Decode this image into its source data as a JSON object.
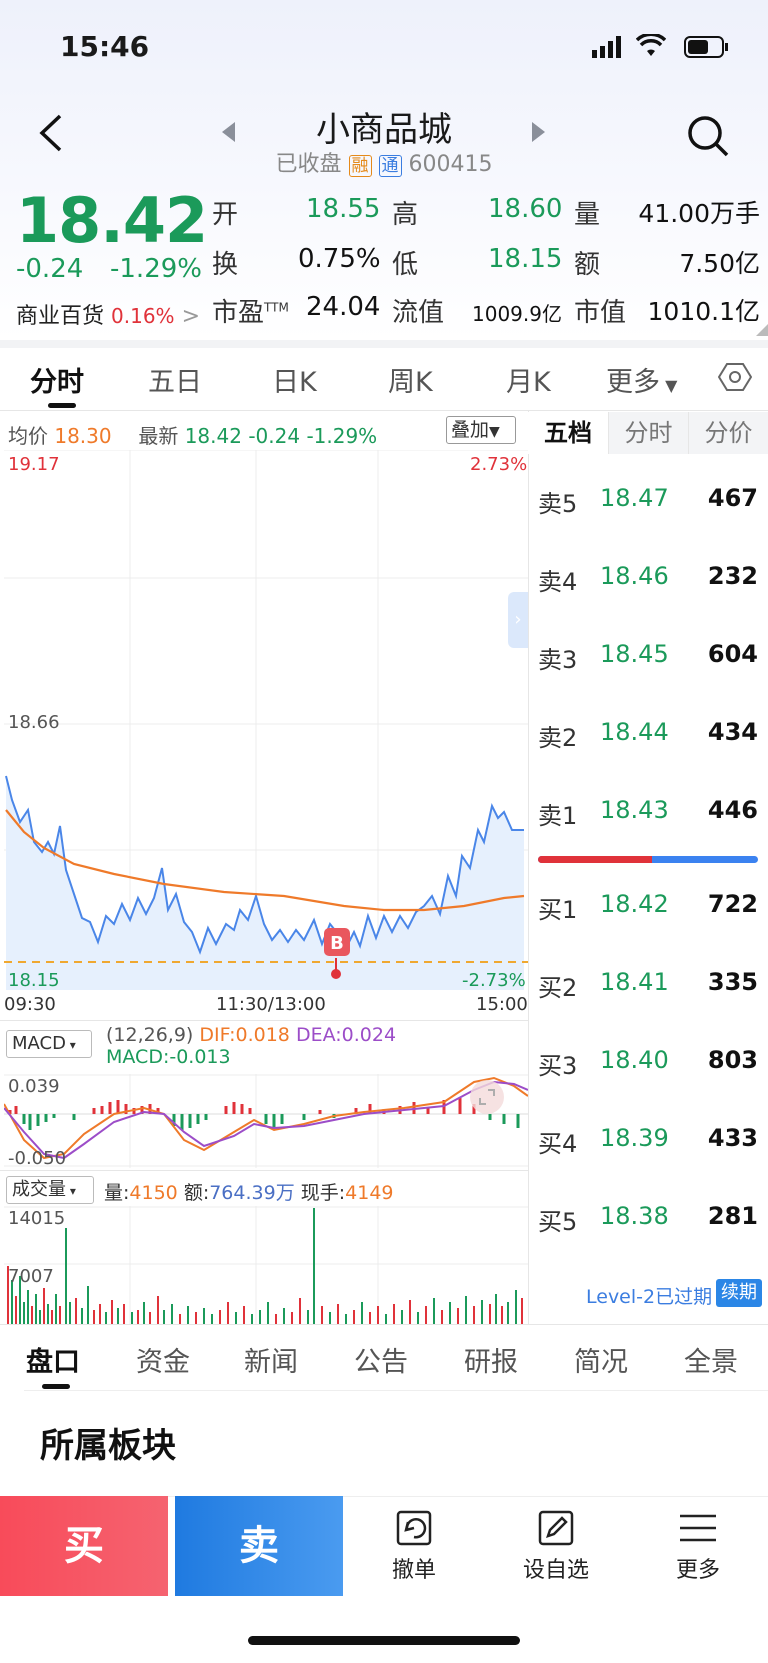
{
  "status_bar": {
    "time": "15:46"
  },
  "header": {
    "title": "小商品城",
    "status": "已收盘",
    "badge_rong": "融",
    "badge_tong": "通",
    "code": "600415"
  },
  "quote": {
    "price": "18.42",
    "change": "-0.24",
    "change_pct": "-1.29%",
    "sector_name": "商业百货",
    "sector_pct": "0.16%",
    "fields": [
      {
        "label": "开",
        "value": "18.55"
      },
      {
        "label": "高",
        "value": "18.60"
      },
      {
        "label": "量",
        "value": "41.00万手"
      },
      {
        "label": "换",
        "value": "0.75%"
      },
      {
        "label": "低",
        "value": "18.15"
      },
      {
        "label": "额",
        "value": "7.50亿"
      },
      {
        "label": "市盈",
        "sup": "TTM",
        "value": "24.04"
      },
      {
        "label": "流值",
        "value": "1009.9亿"
      },
      {
        "label": "市值",
        "value": "1010.1亿"
      }
    ]
  },
  "chart_tabs": [
    "分时",
    "五日",
    "日K",
    "周K",
    "月K",
    "更多"
  ],
  "intraday": {
    "avg_label": "均价",
    "avg_value": "18.30",
    "latest_label": "最新",
    "latest_value": "18.42",
    "latest_change": "-0.24",
    "latest_pct": "-1.29%",
    "overlay_button": "叠加",
    "y_high": "19.17",
    "y_mid": "18.66",
    "y_low": "18.15",
    "pct_high": "2.73%",
    "pct_low": "-2.73%",
    "x_start": "09:30",
    "x_mid": "11:30/13:00",
    "x_end": "15:00",
    "buy_marker": "B"
  },
  "macd": {
    "selector": "MACD",
    "params": "(12,26,9)",
    "dif_label": "DIF:",
    "dif": "0.018",
    "dea_label": "DEA:",
    "dea": "0.024",
    "macd_label": "MACD:",
    "macd": "-0.013",
    "y_top": "0.039",
    "y_bottom": "-0.050"
  },
  "volume": {
    "selector": "成交量",
    "vol_label": "量:",
    "vol": "4150",
    "amt_label": "额:",
    "amt": "764.39万",
    "hand_label": "现手:",
    "hand": "4149",
    "y_top": "14015",
    "y_mid": "7007"
  },
  "orderbook": {
    "tabs": [
      "五档",
      "分时",
      "分价"
    ],
    "asks": [
      {
        "label": "卖5",
        "price": "18.47",
        "vol": "467"
      },
      {
        "label": "卖4",
        "price": "18.46",
        "vol": "232"
      },
      {
        "label": "卖3",
        "price": "18.45",
        "vol": "604"
      },
      {
        "label": "卖2",
        "price": "18.44",
        "vol": "434"
      },
      {
        "label": "卖1",
        "price": "18.43",
        "vol": "446"
      }
    ],
    "bids": [
      {
        "label": "买1",
        "price": "18.42",
        "vol": "722"
      },
      {
        "label": "买2",
        "price": "18.41",
        "vol": "335"
      },
      {
        "label": "买3",
        "price": "18.40",
        "vol": "803"
      },
      {
        "label": "买4",
        "price": "18.39",
        "vol": "433"
      },
      {
        "label": "买5",
        "price": "18.38",
        "vol": "281"
      }
    ],
    "level2_text": "Level-2已过期",
    "renew_button": "续期"
  },
  "bottom_tabs": [
    "盘口",
    "资金",
    "新闻",
    "公告",
    "研报",
    "简况",
    "全景"
  ],
  "section_title": "所属板块",
  "actions": {
    "buy": "买",
    "sell": "卖",
    "cancel": "撤单",
    "watchlist": "设自选",
    "more": "更多"
  },
  "colors": {
    "up": "#e0323a",
    "down": "#1b9a5a",
    "price_line": "#4a86e8",
    "avg_line": "#ef7a2a",
    "buy_button": "#f4505f",
    "sell_button": "#2b86e6"
  }
}
